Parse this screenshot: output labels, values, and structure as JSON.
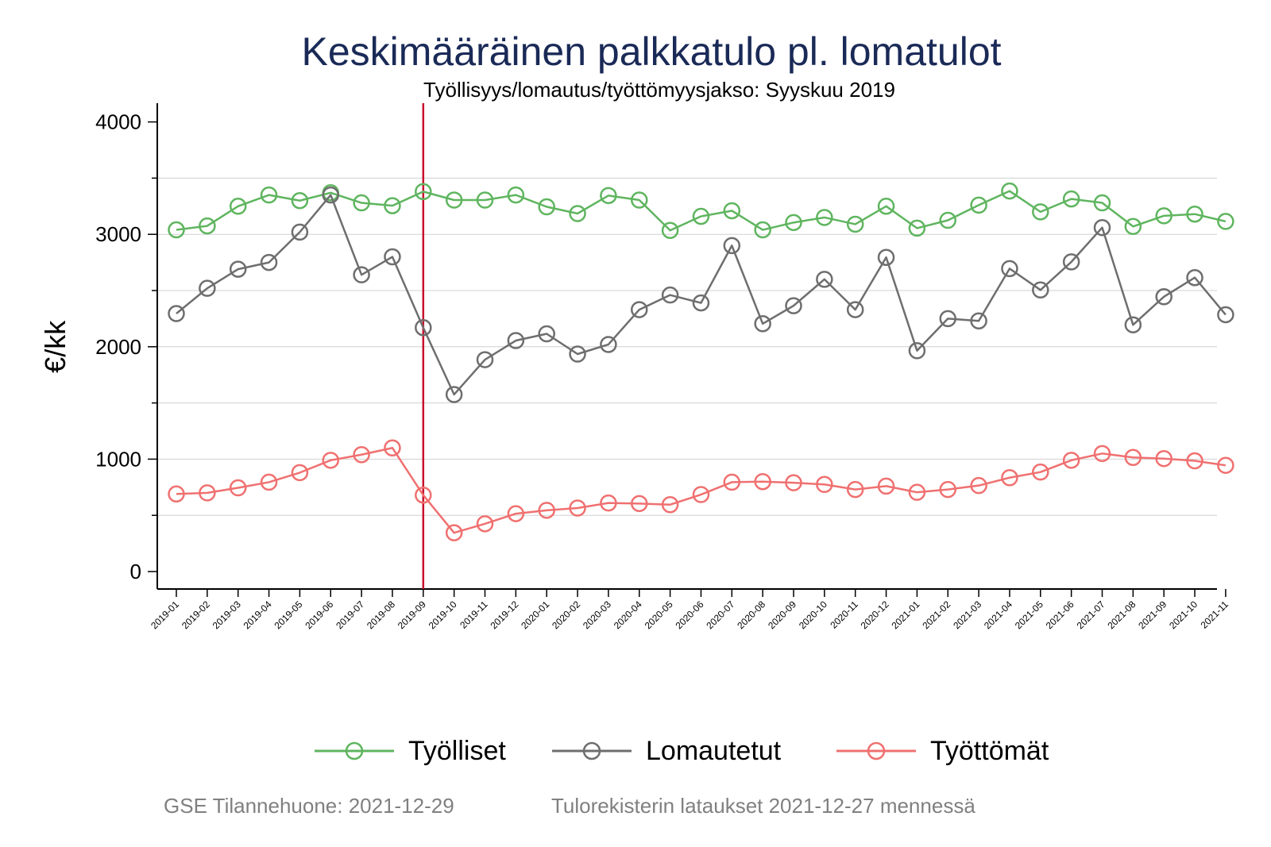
{
  "chart_data": {
    "type": "line",
    "title": "Keskimääräinen palkkatulo pl. lomatulot",
    "subtitle": "Työllisyys/lomautus/työttömyysjakso: Syyskuu 2019",
    "ylabel": "€/kk",
    "xlabel": "",
    "ylim": [
      -150,
      4150
    ],
    "yticks": [
      0,
      1000,
      2000,
      3000,
      4000
    ],
    "grid": true,
    "legend_position": "bottom",
    "reference_line": {
      "x": "2019-09",
      "color": "#c8102e"
    },
    "categories": [
      "2019-01",
      "2019-02",
      "2019-03",
      "2019-04",
      "2019-05",
      "2019-06",
      "2019-07",
      "2019-08",
      "2019-09",
      "2019-10",
      "2019-11",
      "2019-12",
      "2020-01",
      "2020-02",
      "2020-03",
      "2020-04",
      "2020-05",
      "2020-06",
      "2020-07",
      "2020-08",
      "2020-09",
      "2020-10",
      "2020-11",
      "2020-12",
      "2021-01",
      "2021-02",
      "2021-03",
      "2021-04",
      "2021-05",
      "2021-06",
      "2021-07",
      "2021-08",
      "2021-09",
      "2021-10",
      "2021-11"
    ],
    "series": [
      {
        "name": "Työlliset",
        "color": "#5fb55f",
        "values": [
          3040,
          3075,
          3250,
          3350,
          3300,
          3370,
          3280,
          3255,
          3380,
          3305,
          3305,
          3350,
          3245,
          3185,
          3345,
          3305,
          3035,
          3160,
          3210,
          3040,
          3105,
          3150,
          3090,
          3250,
          3055,
          3125,
          3260,
          3385,
          3200,
          3315,
          3280,
          3070,
          3165,
          3180,
          3115
        ]
      },
      {
        "name": "Lomautetut",
        "color": "#6e6e6e",
        "values": [
          2295,
          2520,
          2690,
          2750,
          3020,
          3350,
          2640,
          2800,
          2170,
          1575,
          1885,
          2055,
          2115,
          1935,
          2020,
          2330,
          2460,
          2390,
          2900,
          2205,
          2365,
          2600,
          2330,
          2795,
          1965,
          2250,
          2230,
          2695,
          2505,
          2755,
          3060,
          2195,
          2445,
          2615,
          2285
        ]
      },
      {
        "name": "Työttömät",
        "color": "#f07070",
        "values": [
          690,
          700,
          745,
          795,
          880,
          990,
          1040,
          1100,
          680,
          345,
          425,
          515,
          545,
          565,
          610,
          605,
          595,
          685,
          795,
          800,
          790,
          775,
          730,
          760,
          705,
          730,
          765,
          835,
          885,
          990,
          1050,
          1015,
          1005,
          985,
          945
        ]
      }
    ]
  },
  "footer": {
    "left": "GSE Tilannehuone: 2021-12-29",
    "right": "Tulorekisterin lataukset 2021-12-27 mennessä"
  }
}
